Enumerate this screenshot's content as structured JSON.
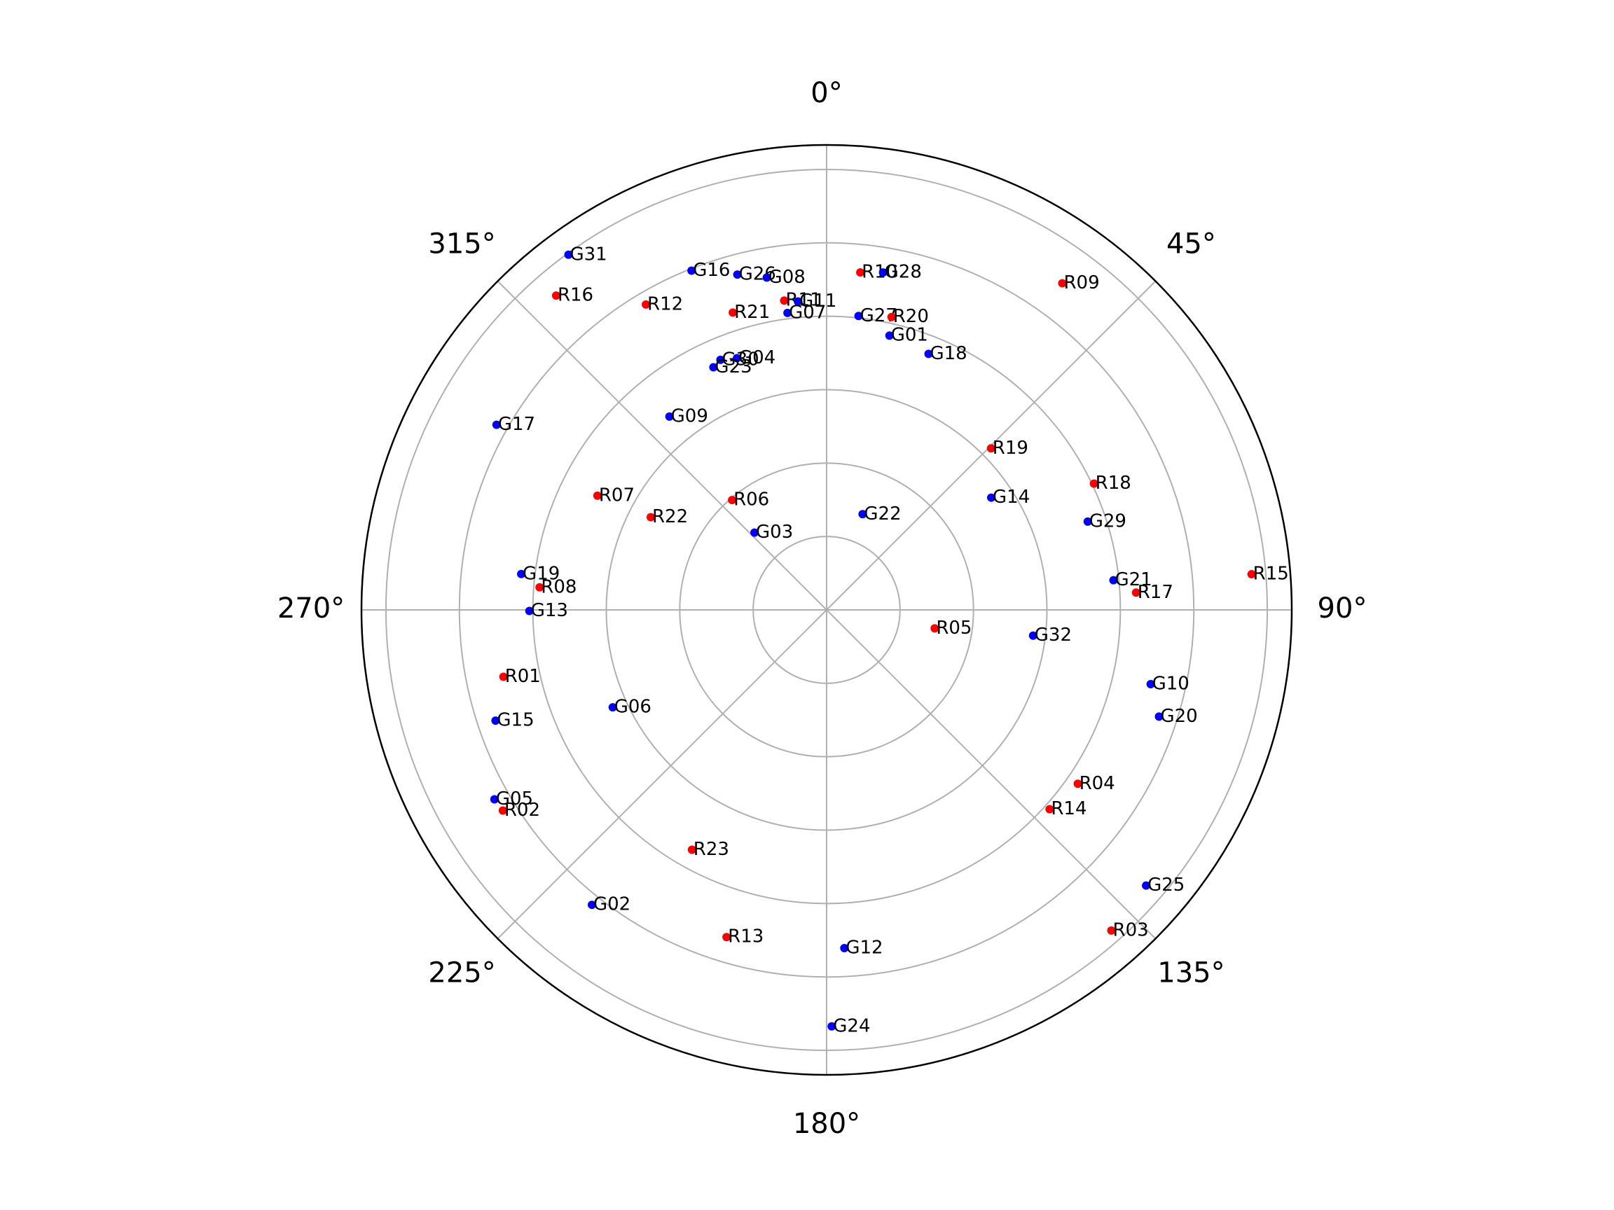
{
  "chart_data": {
    "type": "polar-scatter",
    "theta_direction": "clockwise",
    "theta_zero": "N",
    "rlim": [
      0,
      95
    ],
    "rticks": [
      15,
      30,
      45,
      60,
      75,
      90
    ],
    "thetaticks": [
      {
        "value": 0,
        "label": "0°"
      },
      {
        "value": 45,
        "label": "45°"
      },
      {
        "value": 90,
        "label": "90°"
      },
      {
        "value": 135,
        "label": "135°"
      },
      {
        "value": 180,
        "label": "180°"
      },
      {
        "value": 225,
        "label": "225°"
      },
      {
        "value": 270,
        "label": "270°"
      },
      {
        "value": 315,
        "label": "315°"
      }
    ],
    "grid": true,
    "labels": [
      "G31",
      "R16",
      "G16",
      "G26",
      "G08",
      "R12",
      "R21",
      "R11",
      "G11",
      "G07",
      "R10",
      "G28",
      "G27",
      "R20",
      "G01",
      "G18",
      "R09",
      "G30",
      "G04",
      "G23",
      "G09",
      "G17",
      "R19",
      "R18",
      "G14",
      "G29",
      "R07",
      "R22",
      "R06",
      "G03",
      "G22",
      "G19",
      "R08",
      "G13",
      "R15",
      "G21",
      "R17",
      "R05",
      "G32",
      "R01",
      "G06",
      "G15",
      "G10",
      "G20",
      "R04",
      "R14",
      "G05",
      "R02",
      "R23",
      "G25",
      "G02",
      "R03",
      "R13",
      "G12",
      "G24"
    ],
    "theta": [
      324,
      319.3,
      338.3,
      345.1,
      349.8,
      329.4,
      342.5,
      352.2,
      354.7,
      352.5,
      5.7,
      9.5,
      6.2,
      12.5,
      12.9,
      21.7,
      35.8,
      337,
      340.4,
      335,
      320.9,
      299.3,
      45.5,
      64.7,
      55.7,
      71.3,
      296.5,
      297.8,
      319.3,
      317,
      20.6,
      276.7,
      274.5,
      269.8,
      85.2,
      84.1,
      86.8,
      99.7,
      97.1,
      258.3,
      245.5,
      251.5,
      102.9,
      107.8,
      124.7,
      131.8,
      240.3,
      238.2,
      209.3,
      130.8,
      218.5,
      138.4,
      197,
      177,
      179.3
    ],
    "r": [
      89.7,
      84.7,
      74.6,
      70.9,
      69,
      72.5,
      63.7,
      63.8,
      63.3,
      61.2,
      69.3,
      69.9,
      60.4,
      61.3,
      57.5,
      56.3,
      82.3,
      55.5,
      54.6,
      54.7,
      50.9,
      77.3,
      47.1,
      60.4,
      40.7,
      56.3,
      52.3,
      40.6,
      29.6,
      21.6,
      20.9,
      62.8,
      58.8,
      60.7,
      87.1,
      58.9,
      63.3,
      22.4,
      42.5,
      67.4,
      48,
      71.3,
      67.9,
      71.3,
      62.4,
      61.1,
      78.1,
      77.8,
      56.2,
      86.2,
      77,
      87.6,
      69.9,
      69.2,
      85.1
    ],
    "colors": [
      "blue",
      "red",
      "blue",
      "blue",
      "blue",
      "red",
      "red",
      "red",
      "blue",
      "blue",
      "red",
      "blue",
      "blue",
      "red",
      "blue",
      "blue",
      "red",
      "blue",
      "blue",
      "blue",
      "blue",
      "blue",
      "red",
      "red",
      "blue",
      "blue",
      "red",
      "red",
      "red",
      "blue",
      "blue",
      "blue",
      "red",
      "blue",
      "red",
      "blue",
      "red",
      "red",
      "blue",
      "red",
      "blue",
      "blue",
      "blue",
      "blue",
      "red",
      "red",
      "blue",
      "red",
      "red",
      "blue",
      "blue",
      "red",
      "red",
      "blue",
      "blue"
    ]
  }
}
